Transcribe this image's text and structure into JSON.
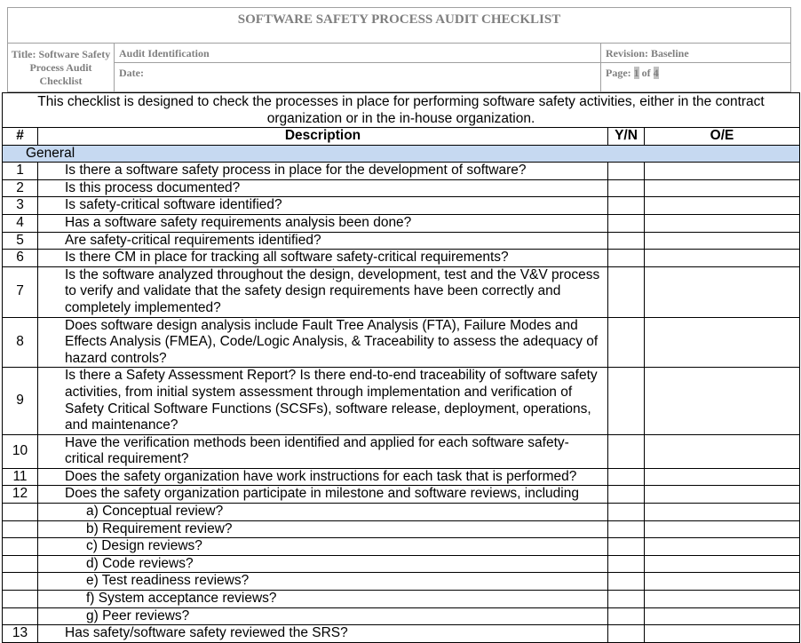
{
  "header": {
    "doc_title": "SOFTWARE SAFETY PROCESS AUDIT CHECKLIST",
    "title_label": "Title:  Software Safety Process Audit Checklist",
    "audit_identification": "Audit Identification",
    "date_label": "Date:",
    "revision": "Revision: Baseline",
    "page_prefix": "Page: ",
    "page_current": "1",
    "page_of": " of ",
    "page_total": "4"
  },
  "intro": "This checklist is designed to check the processes in place for performing software safety activities, either in the contract organization or in the in-house organization.",
  "columns": {
    "num": "#",
    "desc": "Description",
    "yn": "Y/N",
    "oe": "O/E"
  },
  "section": "General",
  "rows": [
    {
      "num": "1",
      "text": "Is there a software safety process in place for the development of software?"
    },
    {
      "num": "2",
      "text": "Is this process documented?"
    },
    {
      "num": "3",
      "text": "Is safety-critical software identified?"
    },
    {
      "num": "4",
      "text": "Has a software safety requirements analysis been done?"
    },
    {
      "num": "5",
      "text": "Are safety-critical requirements identified?"
    },
    {
      "num": "6",
      "text": "Is there CM in place for tracking all software safety-critical requirements?"
    },
    {
      "num": "7",
      "text": "Is the software analyzed throughout the design, development, test and the V&V process to verify and validate that the safety design requirements have been correctly and completely implemented?"
    },
    {
      "num": "8",
      "text": "Does software design analysis include Fault Tree Analysis (FTA), Failure Modes and Effects Analysis (FMEA), Code/Logic Analysis, & Traceability to assess the adequacy of hazard controls?"
    },
    {
      "num": "9",
      "text": "Is there a Safety Assessment Report? Is there end-to-end traceability of software safety activities, from initial system assessment through implementation and verification of Safety Critical Software Functions (SCSFs), software release, deployment, operations, and maintenance?"
    },
    {
      "num": "10",
      "text": "Have the verification methods been identified and applied for each software safety-critical requirement?"
    },
    {
      "num": "11",
      "text": "Does the safety organization have work instructions for each task that is performed?"
    },
    {
      "num": "12",
      "text": "Does the safety organization participate in milestone and software reviews, including"
    },
    {
      "num": "",
      "text": "a)  Conceptual review?",
      "sub": true
    },
    {
      "num": "",
      "text": "b)  Requirement review?",
      "sub": true
    },
    {
      "num": "",
      "text": "c)  Design reviews?",
      "sub": true
    },
    {
      "num": "",
      "text": "d)  Code reviews?",
      "sub": true
    },
    {
      "num": "",
      "text": "e)  Test readiness reviews?",
      "sub": true
    },
    {
      "num": "",
      "text": "f)   System acceptance reviews?",
      "sub": true
    },
    {
      "num": "",
      "text": "g)  Peer reviews?",
      "sub": true
    },
    {
      "num": "13",
      "text": "Has safety/software safety reviewed the SRS?"
    }
  ]
}
